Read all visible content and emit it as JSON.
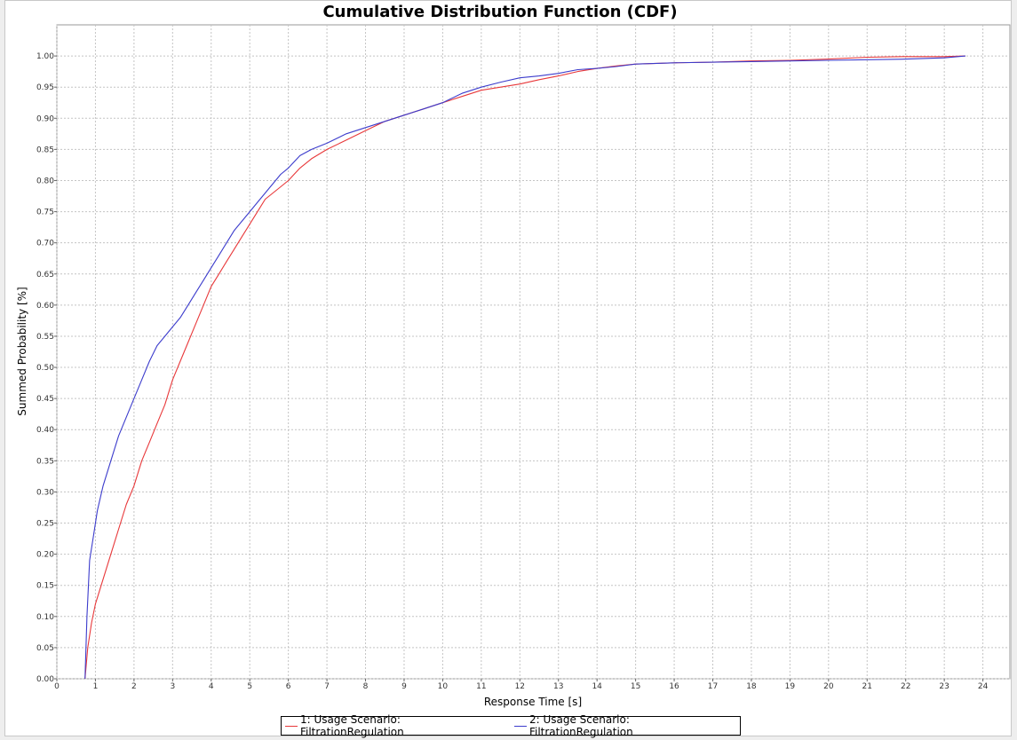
{
  "chart_data": {
    "type": "line",
    "title": "Cumulative Distribution Function (CDF)",
    "xlabel": "Response Time [s]",
    "ylabel": "Summed Probability [%]",
    "xlim": [
      0,
      24.7
    ],
    "ylim": [
      0,
      1.05
    ],
    "x_ticks": [
      "0",
      "1",
      "2",
      "3",
      "4",
      "5",
      "6",
      "7",
      "8",
      "9",
      "10",
      "11",
      "12",
      "13",
      "14",
      "15",
      "16",
      "17",
      "18",
      "19",
      "20",
      "21",
      "22",
      "23",
      "24"
    ],
    "y_ticks": [
      "0.00",
      "0.05",
      "0.10",
      "0.15",
      "0.20",
      "0.25",
      "0.30",
      "0.35",
      "0.40",
      "0.45",
      "0.50",
      "0.55",
      "0.60",
      "0.65",
      "0.70",
      "0.75",
      "0.80",
      "0.85",
      "0.90",
      "0.95",
      "1.00"
    ],
    "grid": true,
    "legend_position": "bottom-center",
    "series": [
      {
        "name": "1: Usage Scenario: FiltrationRegulation",
        "color": "#e8383a",
        "x": [
          0.73,
          0.8,
          0.9,
          1.0,
          1.2,
          1.4,
          1.6,
          1.8,
          2.0,
          2.2,
          2.4,
          2.6,
          2.8,
          3.0,
          3.2,
          3.4,
          3.6,
          3.8,
          4.0,
          4.2,
          4.4,
          4.6,
          4.8,
          5.0,
          5.2,
          5.4,
          5.6,
          5.8,
          6.0,
          6.3,
          6.6,
          7.0,
          7.5,
          8.0,
          8.5,
          9.0,
          9.5,
          10.0,
          10.5,
          11.0,
          11.5,
          12.0,
          12.5,
          13.0,
          13.5,
          14.0,
          14.5,
          15.0,
          16.0,
          17.0,
          18.0,
          19.0,
          20.0,
          21.0,
          22.0,
          23.0,
          23.55
        ],
        "y": [
          0.0,
          0.05,
          0.09,
          0.12,
          0.16,
          0.2,
          0.24,
          0.28,
          0.31,
          0.35,
          0.38,
          0.41,
          0.44,
          0.48,
          0.51,
          0.54,
          0.57,
          0.6,
          0.63,
          0.65,
          0.67,
          0.69,
          0.71,
          0.73,
          0.75,
          0.77,
          0.78,
          0.79,
          0.8,
          0.82,
          0.835,
          0.85,
          0.865,
          0.88,
          0.895,
          0.905,
          0.915,
          0.925,
          0.935,
          0.945,
          0.95,
          0.955,
          0.962,
          0.968,
          0.975,
          0.98,
          0.984,
          0.987,
          0.989,
          0.99,
          0.992,
          0.993,
          0.995,
          0.998,
          0.999,
          0.999,
          1.0
        ]
      },
      {
        "name": "2: Usage Scenario: FiltrationRegulation",
        "color": "#3c3ccc",
        "x": [
          0.73,
          0.78,
          0.85,
          0.95,
          1.05,
          1.2,
          1.4,
          1.6,
          1.8,
          2.0,
          2.2,
          2.4,
          2.6,
          2.8,
          3.0,
          3.2,
          3.4,
          3.6,
          3.8,
          4.0,
          4.2,
          4.4,
          4.6,
          4.8,
          5.0,
          5.2,
          5.4,
          5.6,
          5.8,
          6.0,
          6.3,
          6.6,
          7.0,
          7.5,
          8.0,
          8.5,
          9.0,
          9.5,
          10.0,
          10.5,
          11.0,
          11.5,
          12.0,
          12.5,
          13.0,
          13.5,
          14.0,
          14.5,
          15.0,
          16.0,
          17.0,
          18.0,
          19.0,
          20.0,
          21.0,
          22.0,
          23.0,
          23.55
        ],
        "y": [
          0.0,
          0.1,
          0.19,
          0.23,
          0.27,
          0.31,
          0.35,
          0.39,
          0.42,
          0.45,
          0.48,
          0.51,
          0.535,
          0.55,
          0.565,
          0.58,
          0.6,
          0.62,
          0.64,
          0.66,
          0.68,
          0.7,
          0.72,
          0.735,
          0.75,
          0.765,
          0.78,
          0.795,
          0.81,
          0.82,
          0.84,
          0.85,
          0.86,
          0.875,
          0.885,
          0.895,
          0.905,
          0.915,
          0.925,
          0.94,
          0.95,
          0.958,
          0.965,
          0.968,
          0.972,
          0.978,
          0.98,
          0.983,
          0.987,
          0.989,
          0.99,
          0.991,
          0.992,
          0.993,
          0.994,
          0.995,
          0.997,
          1.0
        ]
      }
    ]
  }
}
